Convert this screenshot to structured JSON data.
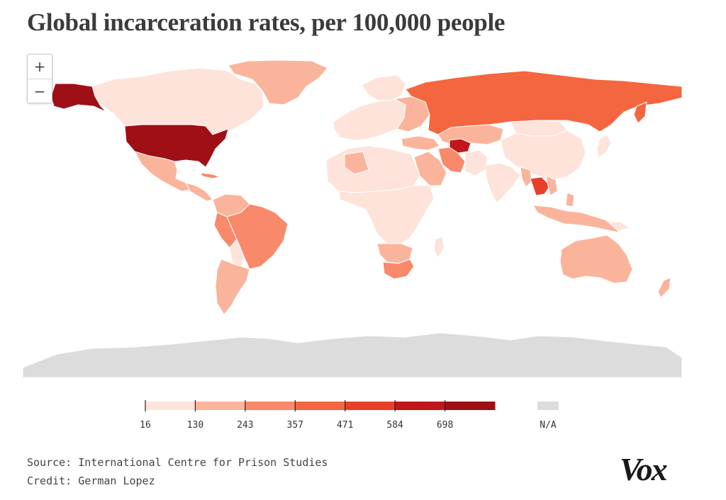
{
  "title": "Global incarceration rates, per 100,000 people",
  "zoom": {
    "in_label": "+",
    "out_label": "−"
  },
  "legend": {
    "ticks": [
      "16",
      "130",
      "243",
      "357",
      "471",
      "584",
      "698"
    ],
    "na_label": "N/A",
    "colors": [
      "#fde3d9",
      "#fbb49c",
      "#f8896b",
      "#f4663f",
      "#e83f2a",
      "#c2161b",
      "#9e0f16"
    ],
    "na_color": "#dcdcdc"
  },
  "source": {
    "label": "Source:",
    "value": "International Centre for Prison Studies"
  },
  "credit": {
    "label": "Credit:",
    "value": "German Lopez"
  },
  "brand": "Vox",
  "map_colors": {
    "usa": "#9e0f16",
    "russia": "#f4663f",
    "turkmenistan": "#c2161b",
    "thailand": "#e83f2a",
    "brazil": "#f8896b",
    "south_africa": "#f8896b",
    "australia": "#fbb49c",
    "default": "#fde3d9",
    "na": "#dcdcdc"
  }
}
